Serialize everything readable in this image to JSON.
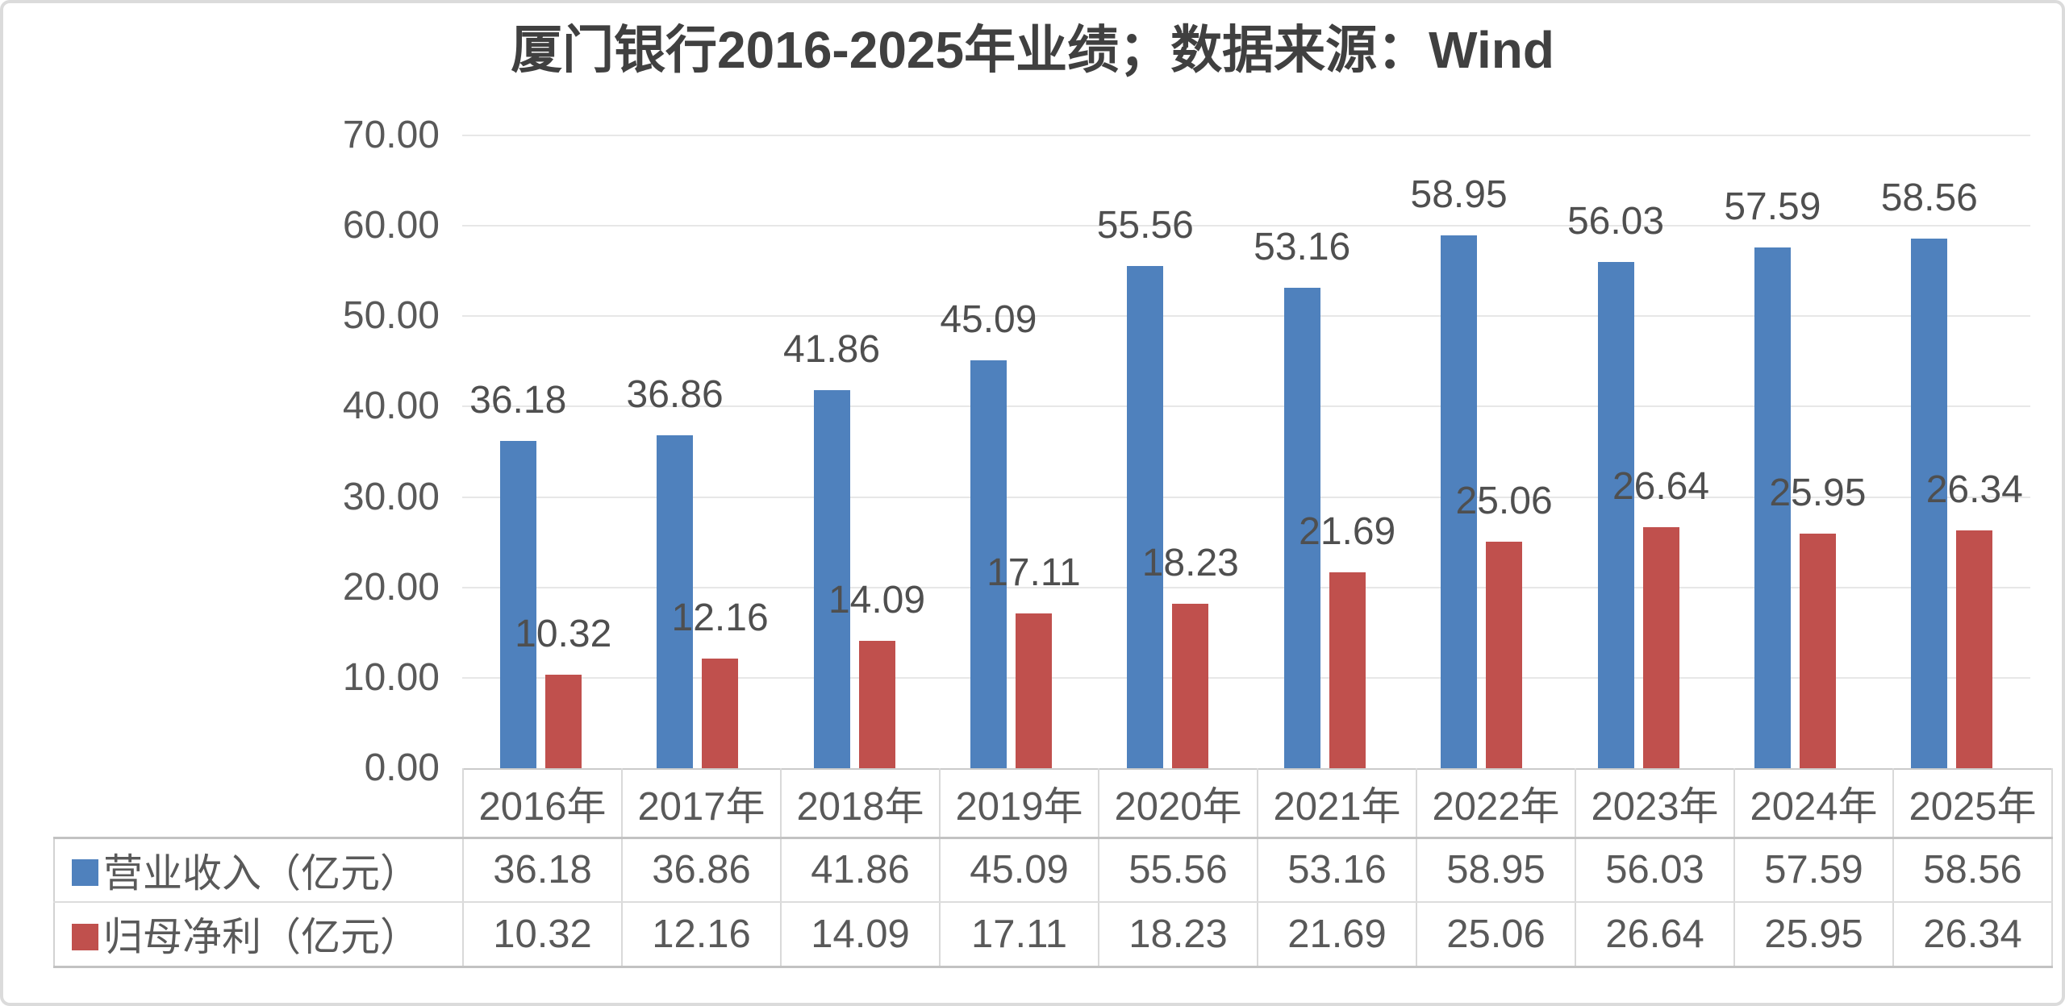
{
  "title": "厦门银行2016-2025年业绩；数据来源：Wind",
  "colors": {
    "revenue_series": "#4F81BD",
    "profit_series": "#C0504D",
    "title_text": "#404040",
    "axis_text": "#595959",
    "value_label_text": "#4F4F4F",
    "table_text": "#595959",
    "gridline": "#E7E7E7",
    "frame_border": "#DBDBDB"
  },
  "chart_data": {
    "type": "bar",
    "title": "厦门银行2016-2025年业绩；数据来源：Wind",
    "categories": [
      "2016年",
      "2017年",
      "2018年",
      "2019年",
      "2020年",
      "2021年",
      "2022年",
      "2023年",
      "2024年",
      "2025年"
    ],
    "series": [
      {
        "name": "营业收入（亿元）",
        "color": "#4F81BD",
        "values": [
          36.18,
          36.86,
          41.86,
          45.09,
          55.56,
          53.16,
          58.95,
          56.03,
          57.59,
          58.56
        ]
      },
      {
        "name": "归母净利（亿元）",
        "color": "#C0504D",
        "values": [
          10.32,
          12.16,
          14.09,
          17.11,
          18.23,
          21.69,
          25.06,
          26.64,
          25.95,
          26.34
        ]
      }
    ],
    "xlabel": "",
    "ylabel": "",
    "ylim": [
      0,
      70
    ],
    "ytick_step": 10,
    "ytick_decimals": 2,
    "ytick_labels": [
      "0.00",
      "10.00",
      "20.00",
      "30.00",
      "40.00",
      "50.00",
      "60.00",
      "70.00"
    ],
    "grid": true,
    "value_labels": true,
    "value_label_decimals": 2,
    "legend_position": "data-table-left",
    "data_table_shown": true
  }
}
